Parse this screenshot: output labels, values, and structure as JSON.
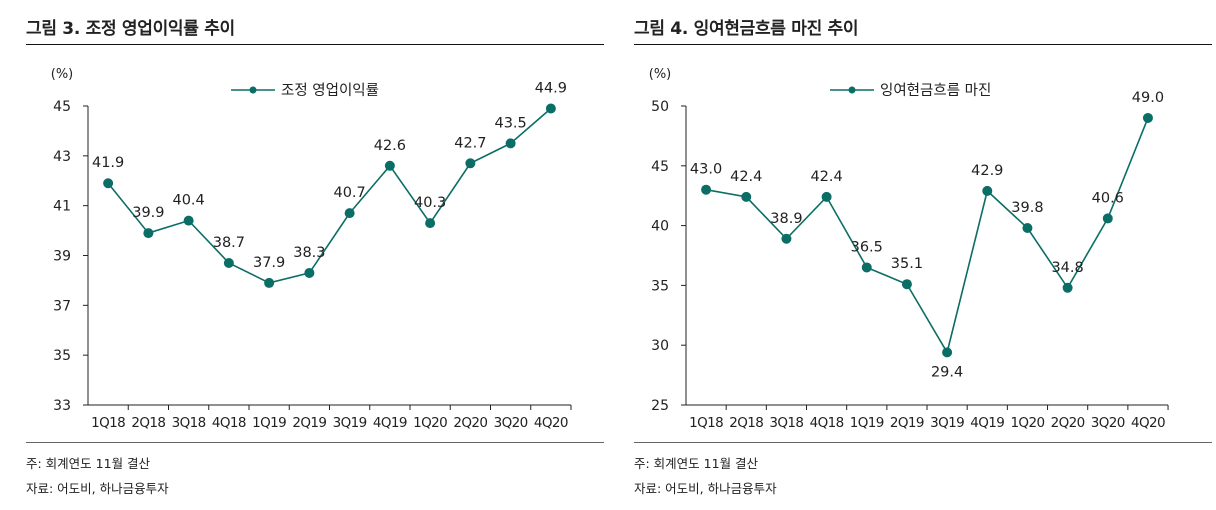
{
  "colors": {
    "series": "#0b6e66",
    "axis": "#222222"
  },
  "charts": [
    {
      "figure_title": "그림 3. 조정 영업이익률 추이",
      "note": "주: 회계연도 11월 결산",
      "source": "자료: 어도비, 하나금융투자",
      "unit": "(%)",
      "legend_icon": "line-with-dot-icon"
    },
    {
      "figure_title": "그림 4. 잉여현금흐름 마진 추이",
      "note": "주: 회계연도 11월 결산",
      "source": "자료: 어도비, 하나금융투자",
      "unit": "(%)",
      "legend_icon": "line-with-dot-icon"
    }
  ],
  "chart_data": [
    {
      "type": "line",
      "title": "그림 3. 조정 영업이익률 추이",
      "xlabel": "",
      "ylabel": "(%)",
      "categories": [
        "1Q18",
        "2Q18",
        "3Q18",
        "4Q18",
        "1Q19",
        "2Q19",
        "3Q19",
        "4Q19",
        "1Q20",
        "2Q20",
        "3Q20",
        "4Q20"
      ],
      "series": [
        {
          "name": "조정 영업이익률",
          "values": [
            41.9,
            39.9,
            40.4,
            38.7,
            37.9,
            38.3,
            40.7,
            42.6,
            40.3,
            42.7,
            43.5,
            44.9
          ],
          "labels": [
            "41.9",
            "39.9",
            "40.4",
            "38.7",
            "37.9",
            "38.3",
            "40.7",
            "42.6",
            "40.3",
            "42.7",
            "43.5",
            "44.9"
          ]
        }
      ],
      "ylim": [
        33,
        45
      ],
      "yticks": [
        33,
        35,
        37,
        39,
        41,
        43,
        45
      ],
      "ytick_labels": [
        "33",
        "35",
        "37",
        "39",
        "41",
        "43",
        "45"
      ],
      "grid": false,
      "legend": "top-center"
    },
    {
      "type": "line",
      "title": "그림 4. 잉여현금흐름 마진 추이",
      "xlabel": "",
      "ylabel": "(%)",
      "categories": [
        "1Q18",
        "2Q18",
        "3Q18",
        "4Q18",
        "1Q19",
        "2Q19",
        "3Q19",
        "4Q19",
        "1Q20",
        "2Q20",
        "3Q20",
        "4Q20"
      ],
      "series": [
        {
          "name": "잉여현금흐름 마진",
          "values": [
            43.0,
            42.4,
            38.9,
            42.4,
            36.5,
            35.1,
            29.4,
            42.9,
            39.8,
            34.8,
            40.6,
            49.0
          ],
          "labels": [
            "43.0",
            "42.4",
            "38.9",
            "42.4",
            "36.5",
            "35.1",
            "29.4",
            "42.9",
            "39.8",
            "34.8",
            "40.6",
            "49.0"
          ]
        }
      ],
      "ylim": [
        25,
        50
      ],
      "yticks": [
        25,
        30,
        35,
        40,
        45,
        50
      ],
      "ytick_labels": [
        "25",
        "30",
        "35",
        "40",
        "45",
        "50"
      ],
      "grid": false,
      "legend": "top-center"
    }
  ]
}
